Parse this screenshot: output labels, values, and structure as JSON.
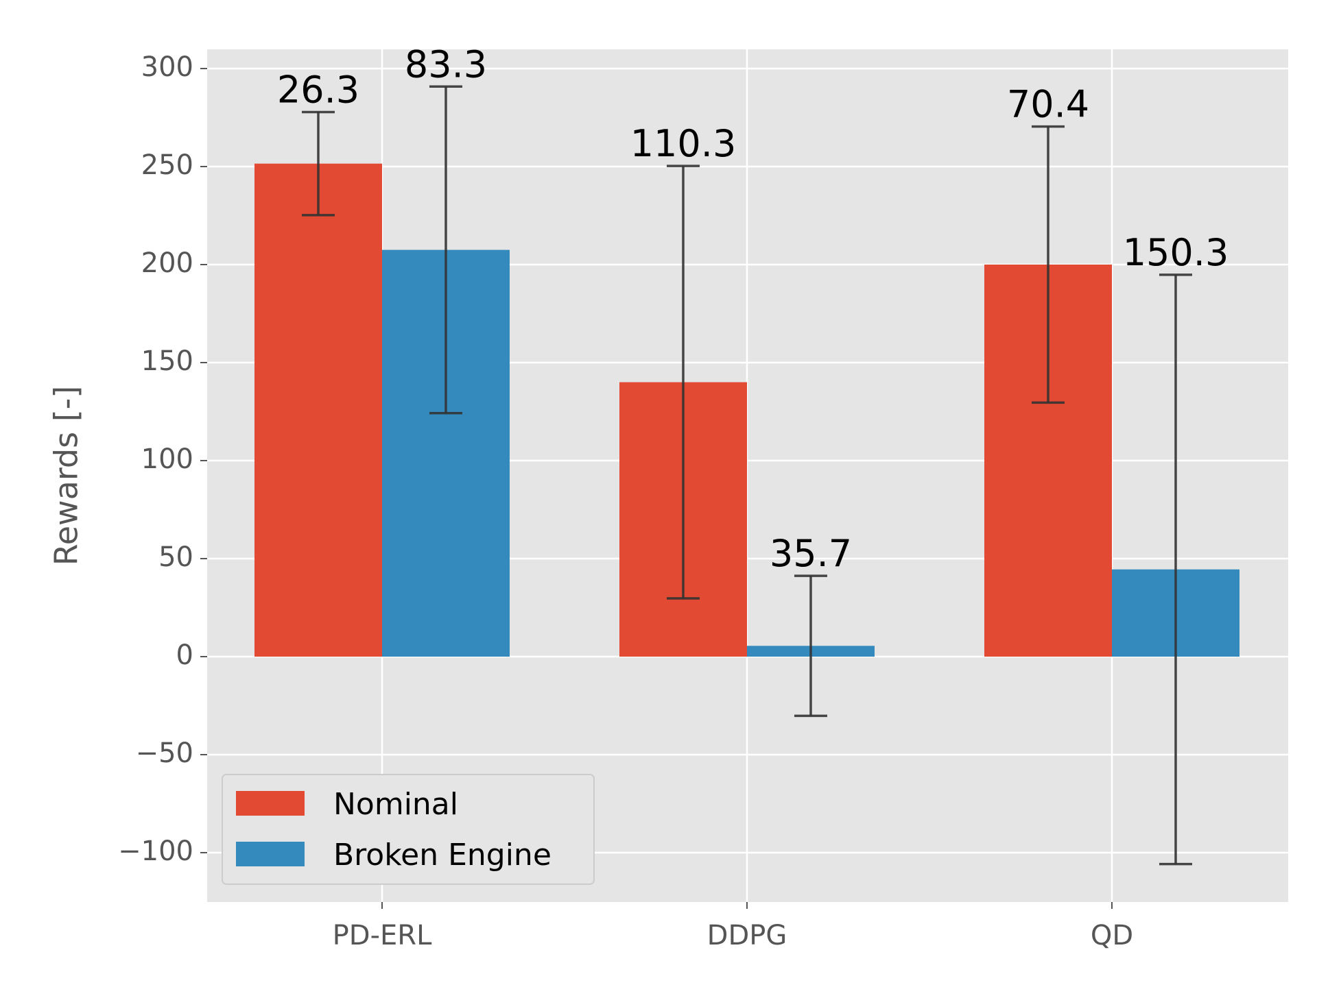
{
  "chart_data": {
    "type": "bar",
    "title": "",
    "xlabel": "",
    "ylabel": "Rewards [-]",
    "categories": [
      "PD-ERL",
      "DDPG",
      "QD"
    ],
    "series": [
      {
        "name": "Nominal",
        "color": "#E24A33",
        "values": [
          251.5,
          140.0,
          200.0
        ],
        "error": [
          26.3,
          110.3,
          70.4
        ]
      },
      {
        "name": "Broken Engine",
        "color": "#348ABD",
        "values": [
          207.5,
          5.5,
          44.5
        ],
        "error": [
          83.3,
          35.7,
          150.3
        ]
      }
    ],
    "data_labels": [
      [
        "26.3",
        "110.3",
        "70.4"
      ],
      [
        "83.3",
        "35.7",
        "150.3"
      ]
    ],
    "ylim": [
      -125,
      310
    ],
    "yticks": [
      300,
      250,
      200,
      150,
      100,
      50,
      0,
      -50,
      -100
    ],
    "ytick_labels": [
      "300",
      "250",
      "200",
      "150",
      "100",
      "50",
      "0",
      "−50",
      "−100"
    ],
    "grid": true,
    "legend_position": "lower-left",
    "background_color": "#E5E5E5",
    "error_bar_color": "#333333"
  }
}
